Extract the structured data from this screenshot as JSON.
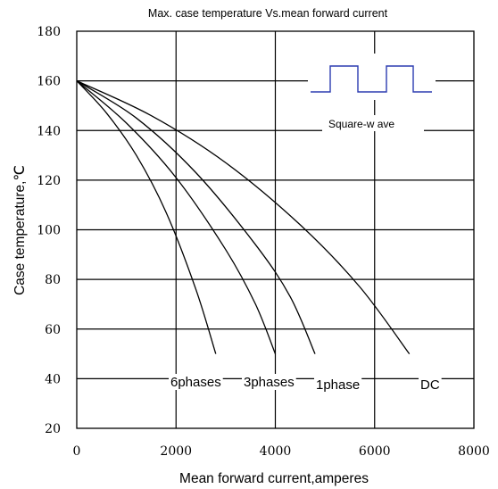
{
  "chart_data": {
    "type": "line",
    "title": "Max. case temperature Vs.mean forward current",
    "xlabel": "Mean forward current,amperes",
    "ylabel": "Case temperature,℃",
    "xlim": [
      0,
      8000
    ],
    "ylim": [
      20,
      180
    ],
    "x_ticks": [
      "0",
      "2000",
      "4000",
      "6000",
      "8000"
    ],
    "y_ticks": [
      "20",
      "40",
      "60",
      "80",
      "100",
      "120",
      "140",
      "160",
      "180"
    ],
    "grid": true,
    "series": [
      {
        "name": "6phases",
        "x": [
          0,
          600,
          1200,
          1800,
          2400,
          2800
        ],
        "y": [
          160,
          147,
          130,
          107,
          76,
          50
        ]
      },
      {
        "name": "3phases",
        "x": [
          0,
          1000,
          2000,
          3000,
          3600,
          4000
        ],
        "y": [
          160,
          143,
          121,
          92,
          70,
          50
        ]
      },
      {
        "name": "1phase",
        "x": [
          0,
          1200,
          2400,
          3600,
          4300,
          4800
        ],
        "y": [
          160,
          145,
          123,
          94,
          73,
          50
        ]
      },
      {
        "name": "DC",
        "x": [
          0,
          1500,
          3000,
          4500,
          5700,
          6700
        ],
        "y": [
          160,
          146,
          127,
          102,
          77,
          50
        ]
      }
    ],
    "annotations": {
      "waveform_label": "Square-w ave"
    }
  }
}
